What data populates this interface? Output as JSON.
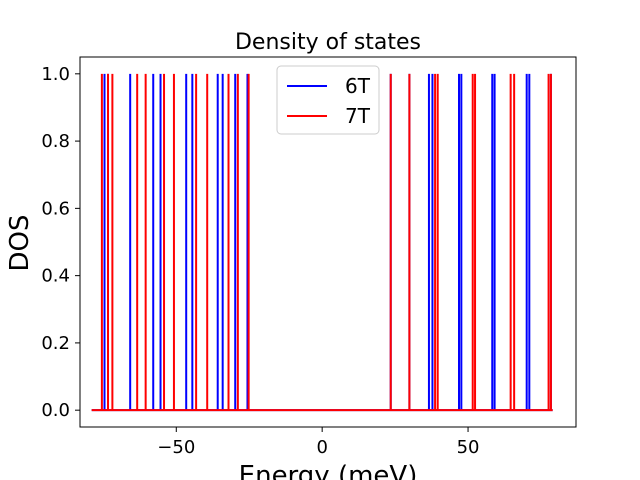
{
  "chart_data": {
    "type": "line",
    "title": "Density of states",
    "xlabel": "Energy (meV)",
    "ylabel": "DOS",
    "xlim": [
      -83,
      87
    ],
    "ylim": [
      -0.05,
      1.05
    ],
    "xticks": [
      -50,
      0,
      50
    ],
    "xtick_labels": [
      "−50",
      "0",
      "50"
    ],
    "yticks": [
      0.0,
      0.2,
      0.4,
      0.6,
      0.8,
      1.0
    ],
    "ytick_labels": [
      "0.0",
      "0.2",
      "0.4",
      "0.6",
      "0.8",
      "1.0"
    ],
    "grid": false,
    "legend_position": "top-center",
    "baseline_range": [
      -79,
      79
    ],
    "series": [
      {
        "name": "6T",
        "color": "#0000ff",
        "peaks": [
          -74.6,
          -73.4,
          -65.8,
          -57.9,
          -55.4,
          -46.6,
          -44.5,
          -35.8,
          -34.1,
          -29.8,
          -25.6,
          23.5,
          29.9,
          36.6,
          37.8,
          46.9,
          47.7,
          58.3,
          59.1,
          70.1,
          71.0,
          78.4
        ]
      },
      {
        "name": "7T",
        "color": "#ff0000",
        "peaks": [
          -75.5,
          -73.4,
          -71.9,
          -63.4,
          -60.5,
          -54.2,
          -50.8,
          -43.2,
          -39.4,
          -32.1,
          -28.9,
          -25.2,
          23.5,
          29.9,
          38.7,
          39.6,
          51.6,
          52.4,
          64.6,
          65.8,
          77.6,
          78.4
        ]
      }
    ]
  }
}
